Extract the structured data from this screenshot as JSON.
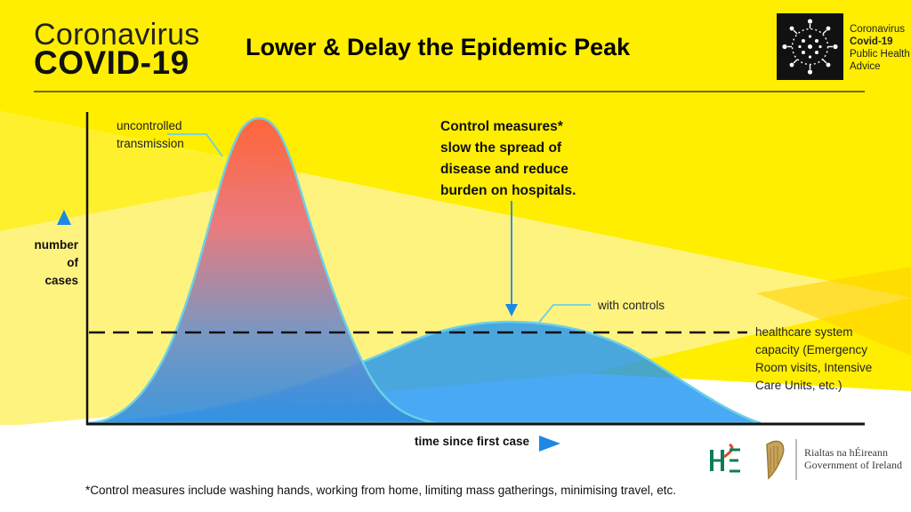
{
  "brand": {
    "line1": "Coronavirus",
    "line2": "COVID-19"
  },
  "title": "Lower & Delay the Epidemic Peak",
  "badge": {
    "line1": "Coronavirus",
    "line2": "Covid-19",
    "line3": "Public Health",
    "line4": "Advice",
    "icon": "virus-icon"
  },
  "labels": {
    "uncontrolled": [
      "uncontrolled",
      "transmission"
    ],
    "with_controls": "with controls",
    "capacity": [
      "healthcare system",
      "capacity (Emergency",
      "Room visits, Intensive",
      "Care Units, etc.)"
    ],
    "callout": [
      "Control measures*",
      "slow the spread of",
      "disease and reduce",
      "burden on hospitals."
    ],
    "y_axis": [
      "number",
      "of",
      "cases"
    ],
    "x_axis": "time since first case"
  },
  "footnote": "*Control measures include washing hands, working from home, limiting mass gatherings, minimising travel, etc.",
  "logos": {
    "hse": "HSE",
    "gov_line1": "Rialtas na hÉireann",
    "gov_line2": "Government of Ireland",
    "harp_icon": "harp-icon"
  },
  "colors": {
    "yellow": "#ffee00",
    "pale_yellow": "#fff380",
    "red_peak": "#ff5a45",
    "blue_curve": "#2196f3",
    "outline": "#6cd0e6",
    "arrow_blue": "#1e88e5"
  }
}
